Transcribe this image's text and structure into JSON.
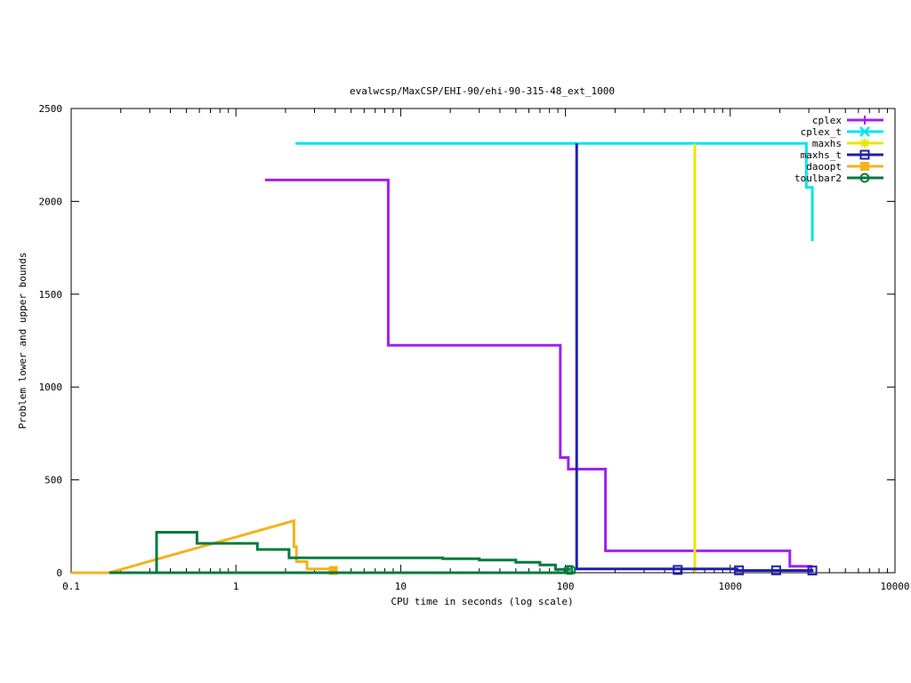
{
  "chart_data": {
    "type": "line",
    "title": "evalwcsp/MaxCSP/EHI-90/ehi-90-315-48_ext_1000",
    "xlabel": "CPU time in seconds (log scale)",
    "ylabel": "Problem lower and upper bounds",
    "x_scale": "log",
    "xlim": [
      0.1,
      10000
    ],
    "ylim": [
      0,
      2500
    ],
    "x_ticks": [
      {
        "value": 0.1,
        "label": "0.1"
      },
      {
        "value": 1,
        "label": "1"
      },
      {
        "value": 10,
        "label": "10"
      },
      {
        "value": 100,
        "label": "100"
      },
      {
        "value": 1000,
        "label": "1000"
      },
      {
        "value": 10000,
        "label": "10000"
      }
    ],
    "y_ticks": [
      {
        "value": 0,
        "label": "0"
      },
      {
        "value": 500,
        "label": "500"
      },
      {
        "value": 1000,
        "label": "1000"
      },
      {
        "value": 1500,
        "label": "1500"
      },
      {
        "value": 2000,
        "label": "2000"
      },
      {
        "value": 2500,
        "label": "2500"
      }
    ],
    "legend_position": "top-right",
    "series": [
      {
        "name": "cplex",
        "color": "#a020f0",
        "marker": "plus",
        "points": [
          [
            1.5,
            2115
          ],
          [
            8.4,
            2115
          ],
          [
            8.4,
            1225
          ],
          [
            93,
            1225
          ],
          [
            93,
            620
          ],
          [
            104,
            620
          ],
          [
            104,
            558
          ],
          [
            175,
            558
          ],
          [
            175,
            118
          ],
          [
            2300,
            118
          ],
          [
            2300,
            35
          ],
          [
            3100,
            35
          ],
          [
            3100,
            2
          ]
        ],
        "marker_points": []
      },
      {
        "name": "cplex_t",
        "color": "#00e5ee",
        "marker": "cross",
        "points": [
          [
            2.3,
            2312
          ],
          [
            2900,
            2312
          ],
          [
            2900,
            2075
          ],
          [
            3150,
            2075
          ],
          [
            3150,
            1785
          ]
        ],
        "marker_points": []
      },
      {
        "name": "maxhs",
        "color": "#e8e800",
        "marker": "star",
        "points": [
          [
            610,
            2
          ],
          [
            610,
            2312
          ]
        ],
        "marker_points": []
      },
      {
        "name": "maxhs_t",
        "color": "#1f1fb0",
        "marker": "square",
        "points": [
          [
            117,
            2312
          ],
          [
            117,
            20
          ],
          [
            1100,
            20
          ],
          [
            1100,
            12
          ],
          [
            3200,
            12
          ]
        ],
        "marker_points": [
          [
            480,
            15
          ],
          [
            1130,
            13
          ],
          [
            1900,
            13
          ],
          [
            3150,
            12
          ]
        ]
      },
      {
        "name": "daoopt",
        "color": "#f5b21b",
        "marker": "filled-square",
        "points": [
          [
            0.1,
            0
          ],
          [
            0.17,
            0
          ],
          [
            2.25,
            280
          ],
          [
            2.25,
            140
          ],
          [
            2.33,
            140
          ],
          [
            2.33,
            60
          ],
          [
            2.7,
            60
          ],
          [
            2.7,
            20
          ],
          [
            3.9,
            20
          ],
          [
            3.9,
            12
          ]
        ],
        "marker_points": [
          [
            3.9,
            12
          ]
        ]
      },
      {
        "name": "toulbar2",
        "color": "#047a3c",
        "marker": "circle",
        "points": [
          [
            0.17,
            0
          ],
          [
            115,
            0
          ],
          [
            0.33,
            0
          ],
          [
            0.33,
            218
          ],
          [
            0.58,
            218
          ],
          [
            0.58,
            158
          ],
          [
            1.35,
            158
          ],
          [
            1.35,
            125
          ],
          [
            2.1,
            125
          ],
          [
            2.1,
            80
          ],
          [
            18,
            80
          ],
          [
            18,
            75
          ],
          [
            30,
            75
          ],
          [
            30,
            68
          ],
          [
            50,
            68
          ],
          [
            50,
            56
          ],
          [
            70,
            56
          ],
          [
            70,
            42
          ],
          [
            87,
            42
          ],
          [
            87,
            18
          ],
          [
            108,
            18
          ]
        ],
        "marker_points": [
          [
            104,
            15
          ],
          [
            108,
            15
          ]
        ]
      }
    ]
  }
}
